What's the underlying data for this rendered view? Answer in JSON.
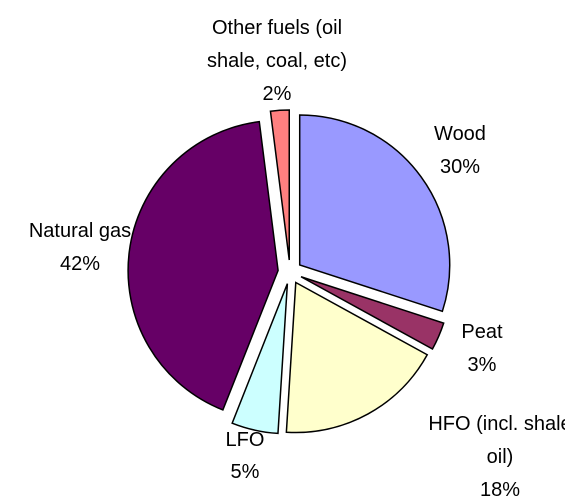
{
  "chart_data": {
    "type": "pie",
    "categories": [
      "Wood",
      "Peat",
      "HFO (incl. shale oil)",
      "LFO",
      "Natural gas",
      "Other fuels (oil shale, coal, etc)"
    ],
    "values": [
      30,
      3,
      18,
      5,
      42,
      2
    ],
    "value_labels": [
      "30%",
      "3%",
      "18%",
      "5%",
      "42%",
      "2%"
    ],
    "colors": [
      "#9999ff",
      "#993366",
      "#ffffcc",
      "#ccffff",
      "#660066",
      "#ff8080"
    ]
  }
}
